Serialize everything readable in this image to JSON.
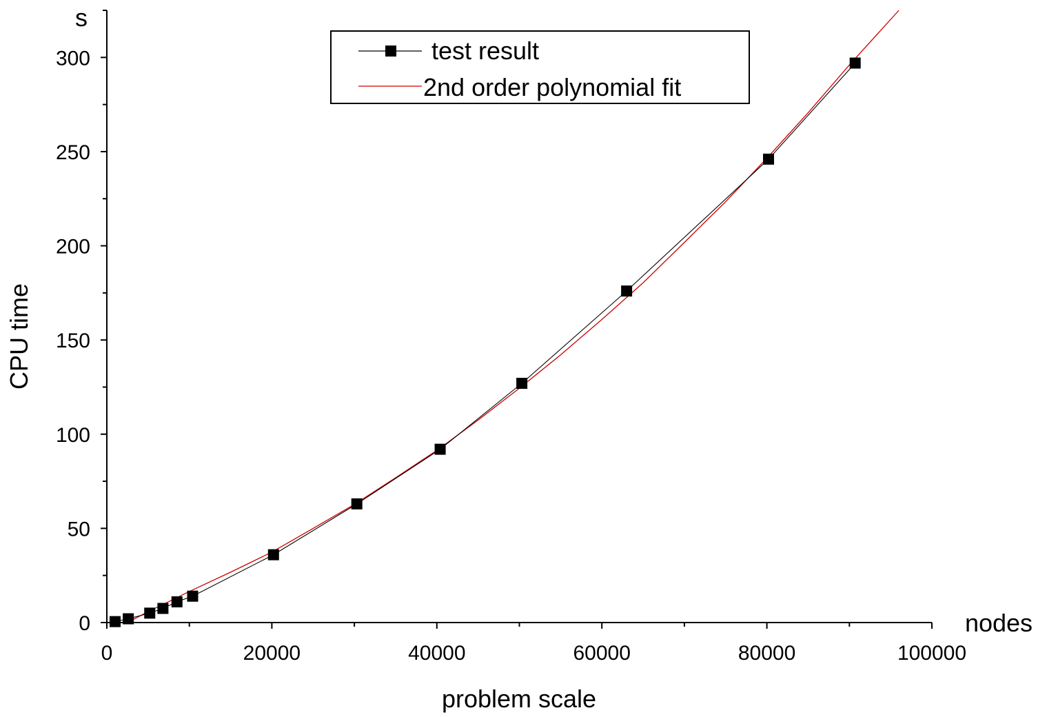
{
  "chart_data": {
    "type": "scatter",
    "xlabel": "problem scale",
    "ylabel": "CPU time",
    "x_unit": "nodes",
    "y_unit": "s",
    "xlim": [
      0,
      100000
    ],
    "ylim": [
      0,
      325
    ],
    "x_ticks": [
      0,
      20000,
      40000,
      60000,
      80000,
      100000
    ],
    "x_tick_labels": [
      "0",
      "20000",
      "40000",
      "60000",
      "80000",
      "100000"
    ],
    "y_ticks": [
      0,
      50,
      100,
      150,
      200,
      250,
      300
    ],
    "y_tick_labels": [
      "0",
      "50",
      "100",
      "150",
      "200",
      "250",
      "300"
    ],
    "grid": false,
    "legend": "top-center",
    "series": [
      {
        "name": "test result",
        "color": "#000000",
        "marker": "square",
        "line": true,
        "x": [
          1000,
          2600,
          5200,
          6800,
          8500,
          10400,
          20200,
          30300,
          40400,
          50300,
          63000,
          80200,
          90700
        ],
        "y": [
          0.5,
          2,
          5,
          7.5,
          11,
          14,
          36,
          63,
          92,
          127,
          176,
          246,
          297
        ]
      },
      {
        "name": "2nd order polynomial fit",
        "color": "#cc0000",
        "marker": "none",
        "line": true,
        "x": [
          2500,
          5000,
          7500,
          10000,
          15000,
          20000,
          25000,
          30000,
          35000,
          40000,
          45000,
          50000,
          55000,
          60000,
          65000,
          70000,
          75000,
          80000,
          85000,
          90000,
          96000
        ],
        "y": [
          0,
          5.8,
          11.1,
          16.5,
          26.7,
          37.4,
          50.0,
          62.7,
          76.9,
          91.4,
          107.5,
          124.4,
          142.1,
          160.9,
          180.4,
          201.8,
          223.4,
          246.5,
          270.6,
          296.0,
          325
        ]
      }
    ]
  }
}
